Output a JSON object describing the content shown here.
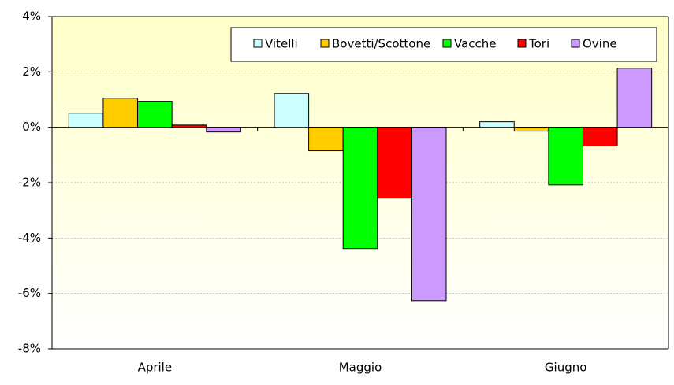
{
  "chart_data": {
    "type": "bar",
    "categories": [
      "Aprile",
      "Maggio",
      "Giugno"
    ],
    "series": [
      {
        "name": "Vitelli",
        "color": "#ccffff",
        "values": [
          0.51,
          1.22,
          0.2
        ]
      },
      {
        "name": "Bovetti/Scottone",
        "color": "#ffcc00",
        "values": [
          1.05,
          -0.85,
          -0.14
        ]
      },
      {
        "name": "Vacche",
        "color": "#00ff00",
        "values": [
          0.94,
          -4.38,
          -2.08
        ]
      },
      {
        "name": "Tori",
        "color": "#ff0000",
        "values": [
          0.08,
          -2.56,
          -0.68
        ]
      },
      {
        "name": "Ovine",
        "color": "#cc99ff",
        "values": [
          -0.17,
          -6.26,
          2.13
        ]
      }
    ],
    "ylim": [
      -8,
      4
    ],
    "yticks": [
      {
        "value": -8,
        "label": "-8%"
      },
      {
        "value": -6,
        "label": "-6%"
      },
      {
        "value": -4,
        "label": "-4%"
      },
      {
        "value": -2,
        "label": "-2%"
      },
      {
        "value": 0,
        "label": "0%"
      },
      {
        "value": 2,
        "label": "2%"
      },
      {
        "value": 4,
        "label": "4%"
      }
    ],
    "grid": true,
    "legend": "top-right"
  }
}
